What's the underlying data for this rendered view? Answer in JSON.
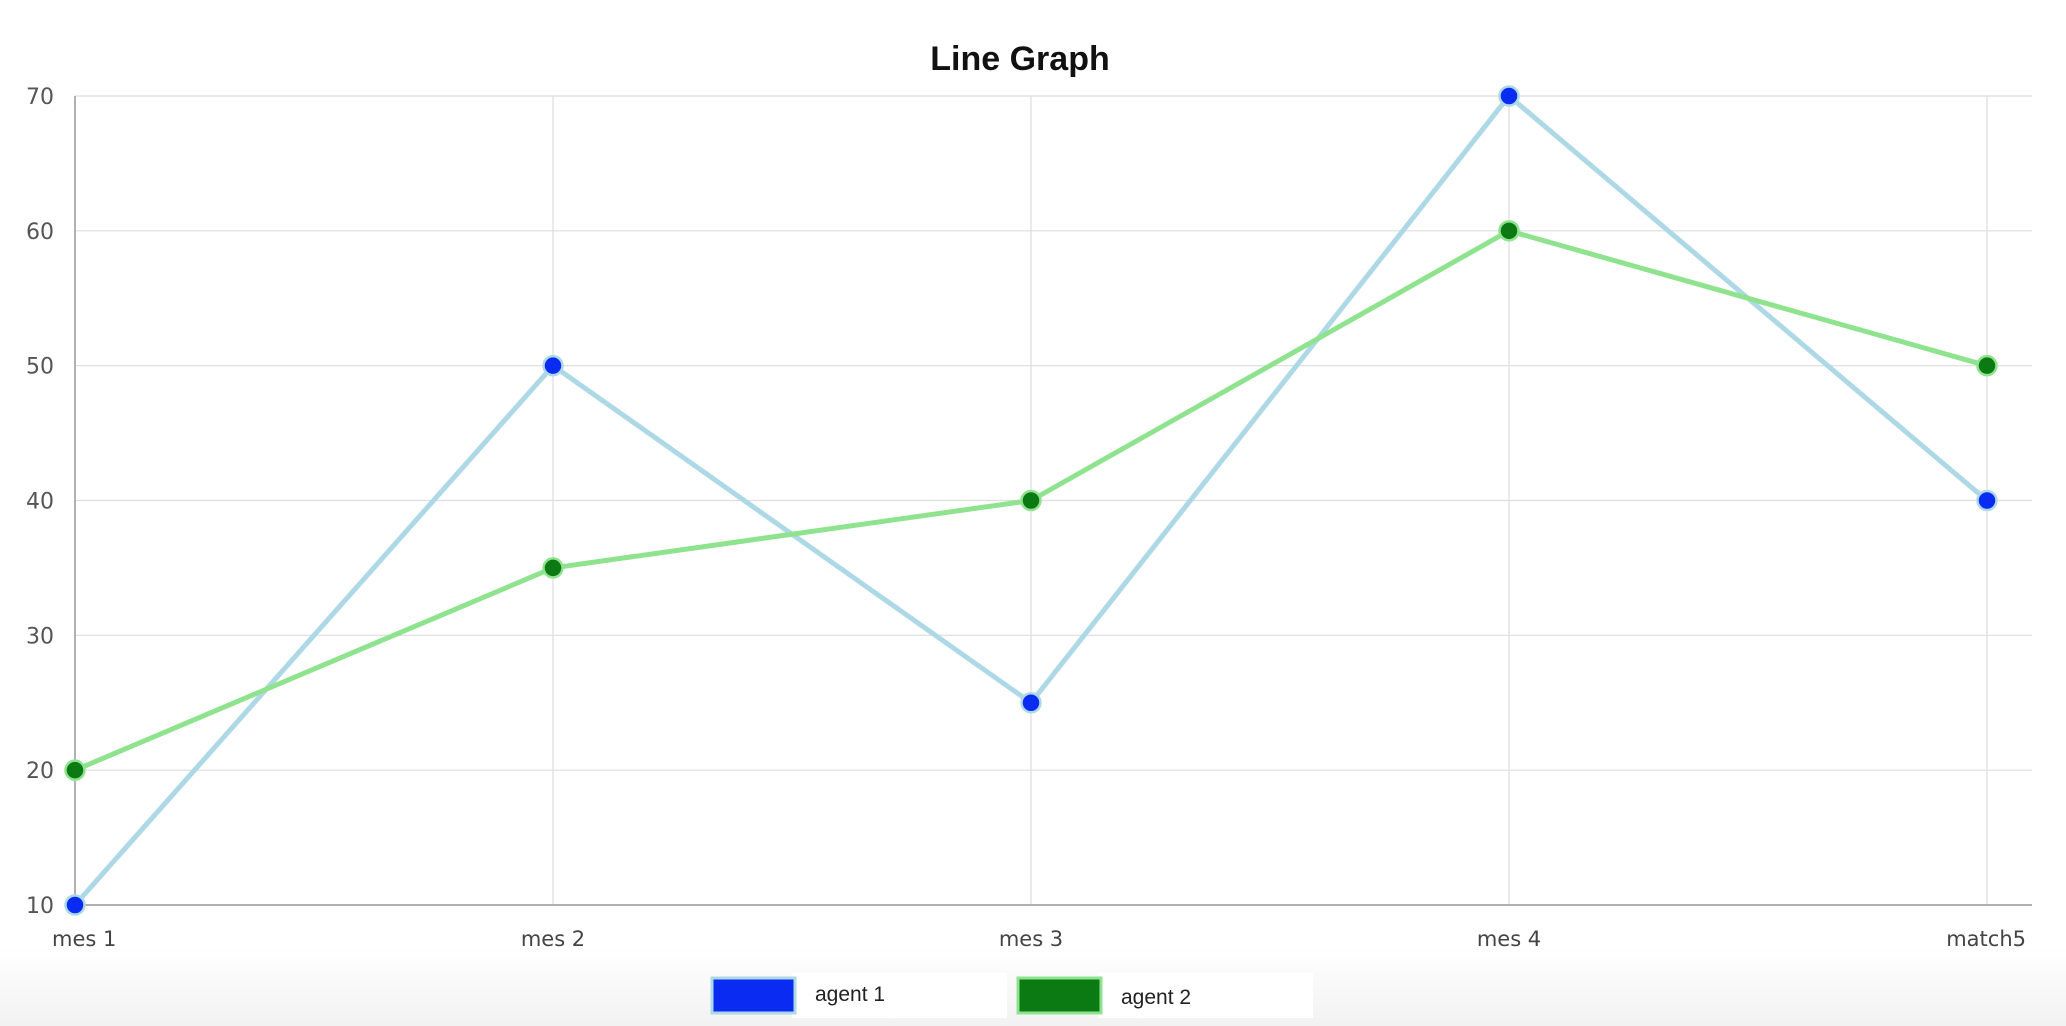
{
  "chart_data": {
    "type": "line",
    "title": "Line Graph",
    "xlabel": "",
    "ylabel": "",
    "categories": [
      "mes 1",
      "mes 2",
      "mes 3",
      "mes 4",
      "match5"
    ],
    "ylim": [
      10,
      70
    ],
    "yticks": [
      10,
      20,
      30,
      40,
      50,
      60,
      70
    ],
    "grid": true,
    "legend_position": "bottom-center",
    "series": [
      {
        "name": "agent 1",
        "values": [
          10,
          50,
          25,
          70,
          40
        ],
        "line_color": "#add8e6",
        "marker_color": "#0a2cf2",
        "marker_border": "#add8e6"
      },
      {
        "name": "agent 2",
        "values": [
          20,
          35,
          40,
          60,
          50
        ],
        "line_color": "#90e38e",
        "marker_color": "#0b7a12",
        "marker_border": "#90e38e"
      }
    ]
  }
}
